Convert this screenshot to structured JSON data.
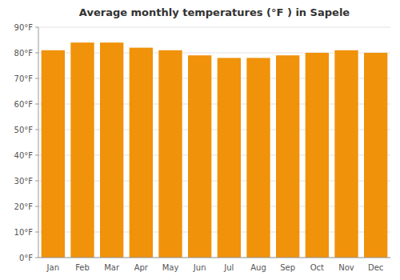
{
  "chart_data": {
    "type": "bar",
    "title": "Average monthly temperatures (°F ) in Sapele",
    "categories": [
      "Jan",
      "Feb",
      "Mar",
      "Apr",
      "May",
      "Jun",
      "Jul",
      "Aug",
      "Sep",
      "Oct",
      "Nov",
      "Dec"
    ],
    "values": [
      81,
      84,
      84,
      82,
      81,
      79,
      78,
      78,
      79,
      80,
      81,
      80
    ],
    "color": "#F0920A",
    "ylim": [
      0,
      90
    ],
    "yticks": [
      {
        "value": 0,
        "label": "0°F"
      },
      {
        "value": 10,
        "label": "10°F"
      },
      {
        "value": 20,
        "label": "20°F"
      },
      {
        "value": 30,
        "label": "30°F"
      },
      {
        "value": 40,
        "label": "40°F"
      },
      {
        "value": 50,
        "label": "50°F"
      },
      {
        "value": 60,
        "label": "60°F"
      },
      {
        "value": 70,
        "label": "70°F"
      },
      {
        "value": 80,
        "label": "80°F"
      },
      {
        "value": 90,
        "label": "90°F"
      }
    ],
    "grid": true
  }
}
